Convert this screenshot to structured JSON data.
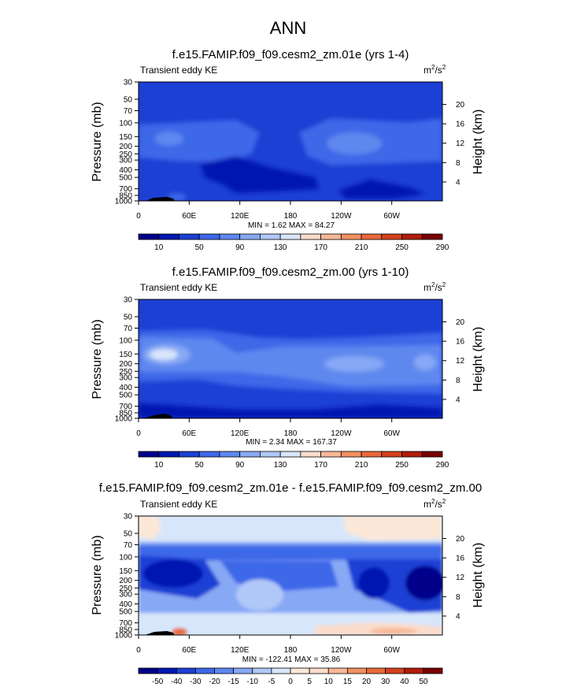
{
  "page_title": "ANN",
  "chart_data": [
    {
      "type": "heatmap",
      "title": "f.e15.FAMIP.f09_f09.cesm2_zm.01e (yrs 1-4)",
      "variable_label": "Transient eddy KE",
      "units_base": "m",
      "units_sup1": "2",
      "units_mid": "/s",
      "units_sup2": "2",
      "ylabel": "Pressure (mb)",
      "y2label": "Height (km)",
      "pressure_ticks": [
        "30",
        "50",
        "70",
        "100",
        "150",
        "200",
        "250",
        "300",
        "400",
        "500",
        "700",
        "850",
        "1000"
      ],
      "pressure_values": [
        30,
        50,
        70,
        100,
        150,
        200,
        250,
        300,
        400,
        500,
        700,
        850,
        1000
      ],
      "height_ticks": [
        "20",
        "16",
        "12",
        "8",
        "4"
      ],
      "height_values": [
        20,
        16,
        12,
        8,
        4
      ],
      "lon_ticks": [
        "0",
        "60E",
        "120E",
        "180",
        "120W",
        "60W"
      ],
      "lon_values": [
        0,
        60,
        120,
        180,
        240,
        300
      ],
      "stats": "MIN =   1.62  MAX =  84.27",
      "colorbar_labels": [
        "10",
        "50",
        "90",
        "130",
        "170",
        "210",
        "250",
        "290"
      ],
      "colorbar_colors": [
        "#00008b",
        "#0018b0",
        "#1c3fd4",
        "#3c68e8",
        "#5f88ef",
        "#87a8f5",
        "#b0c8f8",
        "#d8e6fb",
        "#fbdccb",
        "#f8b896",
        "#f39060",
        "#e8683a",
        "#d5401e",
        "#b01c0c",
        "#7a0000"
      ]
    },
    {
      "type": "heatmap",
      "title": "f.e15.FAMIP.f09_f09.cesm2_zm.00 (yrs 1-10)",
      "variable_label": "Transient eddy KE",
      "units_base": "m",
      "units_sup1": "2",
      "units_mid": "/s",
      "units_sup2": "2",
      "ylabel": "Pressure (mb)",
      "y2label": "Height (km)",
      "pressure_ticks": [
        "30",
        "50",
        "70",
        "100",
        "150",
        "200",
        "250",
        "300",
        "400",
        "500",
        "700",
        "850",
        "1000"
      ],
      "pressure_values": [
        30,
        50,
        70,
        100,
        150,
        200,
        250,
        300,
        400,
        500,
        700,
        850,
        1000
      ],
      "height_ticks": [
        "20",
        "16",
        "12",
        "8",
        "4"
      ],
      "height_values": [
        20,
        16,
        12,
        8,
        4
      ],
      "lon_ticks": [
        "0",
        "60E",
        "120E",
        "180",
        "120W",
        "60W"
      ],
      "lon_values": [
        0,
        60,
        120,
        180,
        240,
        300
      ],
      "stats": "MIN =   2.34  MAX = 167.37",
      "colorbar_labels": [
        "10",
        "50",
        "90",
        "130",
        "170",
        "210",
        "250",
        "290"
      ],
      "colorbar_colors": [
        "#00008b",
        "#0018b0",
        "#1c3fd4",
        "#3c68e8",
        "#5f88ef",
        "#87a8f5",
        "#b0c8f8",
        "#d8e6fb",
        "#fbdccb",
        "#f8b896",
        "#f39060",
        "#e8683a",
        "#d5401e",
        "#b01c0c",
        "#7a0000"
      ]
    },
    {
      "type": "heatmap",
      "title": "f.e15.FAMIP.f09_f09.cesm2_zm.01e - f.e15.FAMIP.f09_f09.cesm2_zm.00",
      "variable_label": "Transient eddy KE",
      "units_base": "m",
      "units_sup1": "2",
      "units_mid": "/s",
      "units_sup2": "2",
      "ylabel": "Pressure (mb)",
      "y2label": "Height (km)",
      "pressure_ticks": [
        "30",
        "50",
        "70",
        "100",
        "150",
        "200",
        "250",
        "300",
        "400",
        "500",
        "700",
        "850",
        "1000"
      ],
      "pressure_values": [
        30,
        50,
        70,
        100,
        150,
        200,
        250,
        300,
        400,
        500,
        700,
        850,
        1000
      ],
      "height_ticks": [
        "20",
        "16",
        "12",
        "8",
        "4"
      ],
      "height_values": [
        20,
        16,
        12,
        8,
        4
      ],
      "lon_ticks": [
        "0",
        "60E",
        "120E",
        "180",
        "120W",
        "60W"
      ],
      "lon_values": [
        0,
        60,
        120,
        180,
        240,
        300
      ],
      "stats": "MIN = -122.41  MAX =  35.86",
      "colorbar_labels": [
        "-50",
        "-40",
        "-30",
        "-20",
        "-15",
        "-10",
        "-5",
        "0",
        "5",
        "10",
        "15",
        "20",
        "30",
        "40",
        "50"
      ],
      "colorbar_colors": [
        "#00008b",
        "#0018b0",
        "#1c3fd4",
        "#3c68e8",
        "#5f88ef",
        "#87a8f5",
        "#b0c8f8",
        "#d8e6fb",
        "#fbe8d8",
        "#fbdccb",
        "#f8b896",
        "#f39060",
        "#e8683a",
        "#d5401e",
        "#b01c0c",
        "#7a0000"
      ]
    }
  ]
}
